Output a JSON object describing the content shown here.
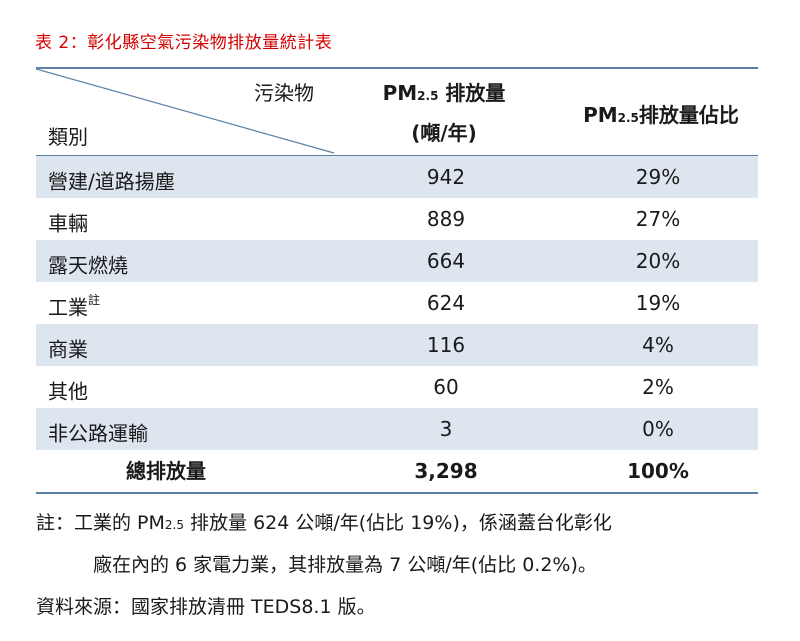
{
  "caption": "表 2：彰化縣空氣污染物排放量統計表",
  "header": {
    "pollutant": "污染物",
    "category": "類別",
    "emission_pm": "PM",
    "emission_sub": "2.5",
    "emission_rest": " 排放量",
    "emission_unit": "(噸/年)",
    "share_pm": "PM",
    "share_sub": "2.5",
    "share_rest": "排放量佔比"
  },
  "rows": [
    {
      "category": "營建/道路揚塵",
      "sup": "",
      "emission": "942",
      "share": "29%"
    },
    {
      "category": "車輛",
      "sup": "",
      "emission": "889",
      "share": "27%"
    },
    {
      "category": "露天燃燒",
      "sup": "",
      "emission": "664",
      "share": "20%"
    },
    {
      "category": "工業",
      "sup": "註",
      "emission": "624",
      "share": "19%"
    },
    {
      "category": "商業",
      "sup": "",
      "emission": "116",
      "share": "4%"
    },
    {
      "category": "其他",
      "sup": "",
      "emission": "60",
      "share": "2%"
    },
    {
      "category": "非公路運輸",
      "sup": "",
      "emission": "3",
      "share": "0%"
    }
  ],
  "total": {
    "category": "總排放量",
    "emission": "3,298",
    "share": "100%"
  },
  "note": {
    "line1_a": "註：工業的 PM",
    "line1_sub": "2.5",
    "line1_b": " 排放量 624 公噸/年(佔比 19%)，係涵蓋台化彰化",
    "line2": "廠在內的 6 家電力業，其排放量為 7 公噸/年(佔比 0.2%)。"
  },
  "source": "資料來源：國家排放清冊 TEDS8.1 版。",
  "colors": {
    "caption": "#d40000",
    "rule": "#5b80a8",
    "shade": "#dde5ef"
  }
}
